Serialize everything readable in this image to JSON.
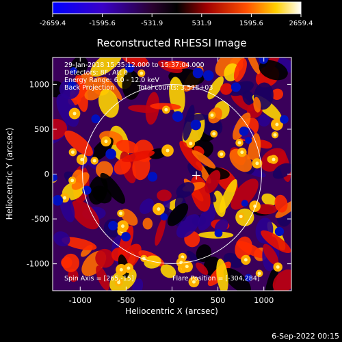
{
  "chart_data": {
    "type": "heatmap",
    "title": "Reconstructed RHESSI Image",
    "xlabel": "Heliocentric X (arcsec)",
    "ylabel": "Heliocentric Y (arcsec)",
    "xlim": [
      -1300,
      1300
    ],
    "ylim": [
      -1300,
      1300
    ],
    "xticks": [
      -1000,
      -500,
      0,
      500,
      1000
    ],
    "yticks": [
      -1000,
      -500,
      0,
      500,
      1000
    ],
    "colorbar": {
      "range": [
        -2659.4,
        2659.4
      ],
      "tick_labels": [
        "-2659.4",
        "-1595.6",
        "-531.9",
        "531.9",
        "1595.6",
        "2659.4"
      ],
      "colors": [
        "#0000ff",
        "#5a0096",
        "#000000",
        "#c80000",
        "#ffb400",
        "#ffffff"
      ]
    },
    "annotations": {
      "time_range": "29-Jan-2018 15:35:12.000 to 15:37:04.000",
      "detectors": "Detectors: 8F, Att 0",
      "energy": "Energy Range: 6.0 - 12.0 keV",
      "method": "Back Projection",
      "counts": "Total counts: 3.51E+03",
      "spin_axis": "Spin Axis = [265,-15]",
      "flare_position_label": "Flare Position = [-304,284]"
    },
    "solar_limb_radius_arcsec": 975,
    "marker_center": [
      265,
      -15
    ],
    "footer_date": "6-Sep-2022 00:15"
  }
}
